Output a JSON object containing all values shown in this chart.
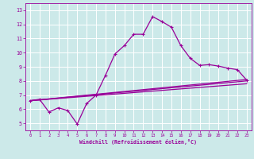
{
  "xlabel": "Windchill (Refroidissement éolien,°C)",
  "bg_color": "#cce9e9",
  "grid_color": "#ffffff",
  "line_color": "#990099",
  "xlim": [
    -0.5,
    23.5
  ],
  "ylim": [
    4.5,
    13.5
  ],
  "xticks": [
    0,
    1,
    2,
    3,
    4,
    5,
    6,
    7,
    8,
    9,
    10,
    11,
    12,
    13,
    14,
    15,
    16,
    17,
    18,
    19,
    20,
    21,
    22,
    23
  ],
  "yticks": [
    5,
    6,
    7,
    8,
    9,
    10,
    11,
    12,
    13
  ],
  "curve1_x": [
    0,
    1,
    2,
    3,
    4,
    5,
    6,
    7,
    8,
    9,
    10,
    11,
    12,
    13,
    14,
    15,
    16,
    17,
    18,
    19,
    20,
    21,
    22,
    23
  ],
  "curve1_y": [
    6.6,
    6.7,
    5.8,
    6.1,
    5.9,
    4.95,
    6.4,
    7.0,
    8.4,
    9.9,
    10.5,
    11.3,
    11.3,
    12.55,
    12.2,
    11.8,
    10.5,
    9.6,
    9.1,
    9.15,
    9.05,
    8.9,
    8.8,
    8.05
  ],
  "curve2_x": [
    0,
    23
  ],
  "curve2_y": [
    6.6,
    8.1
  ],
  "curve3_x": [
    0,
    23
  ],
  "curve3_y": [
    6.6,
    7.8
  ],
  "curve4_x": [
    0,
    23
  ],
  "curve4_y": [
    6.6,
    8.0
  ]
}
